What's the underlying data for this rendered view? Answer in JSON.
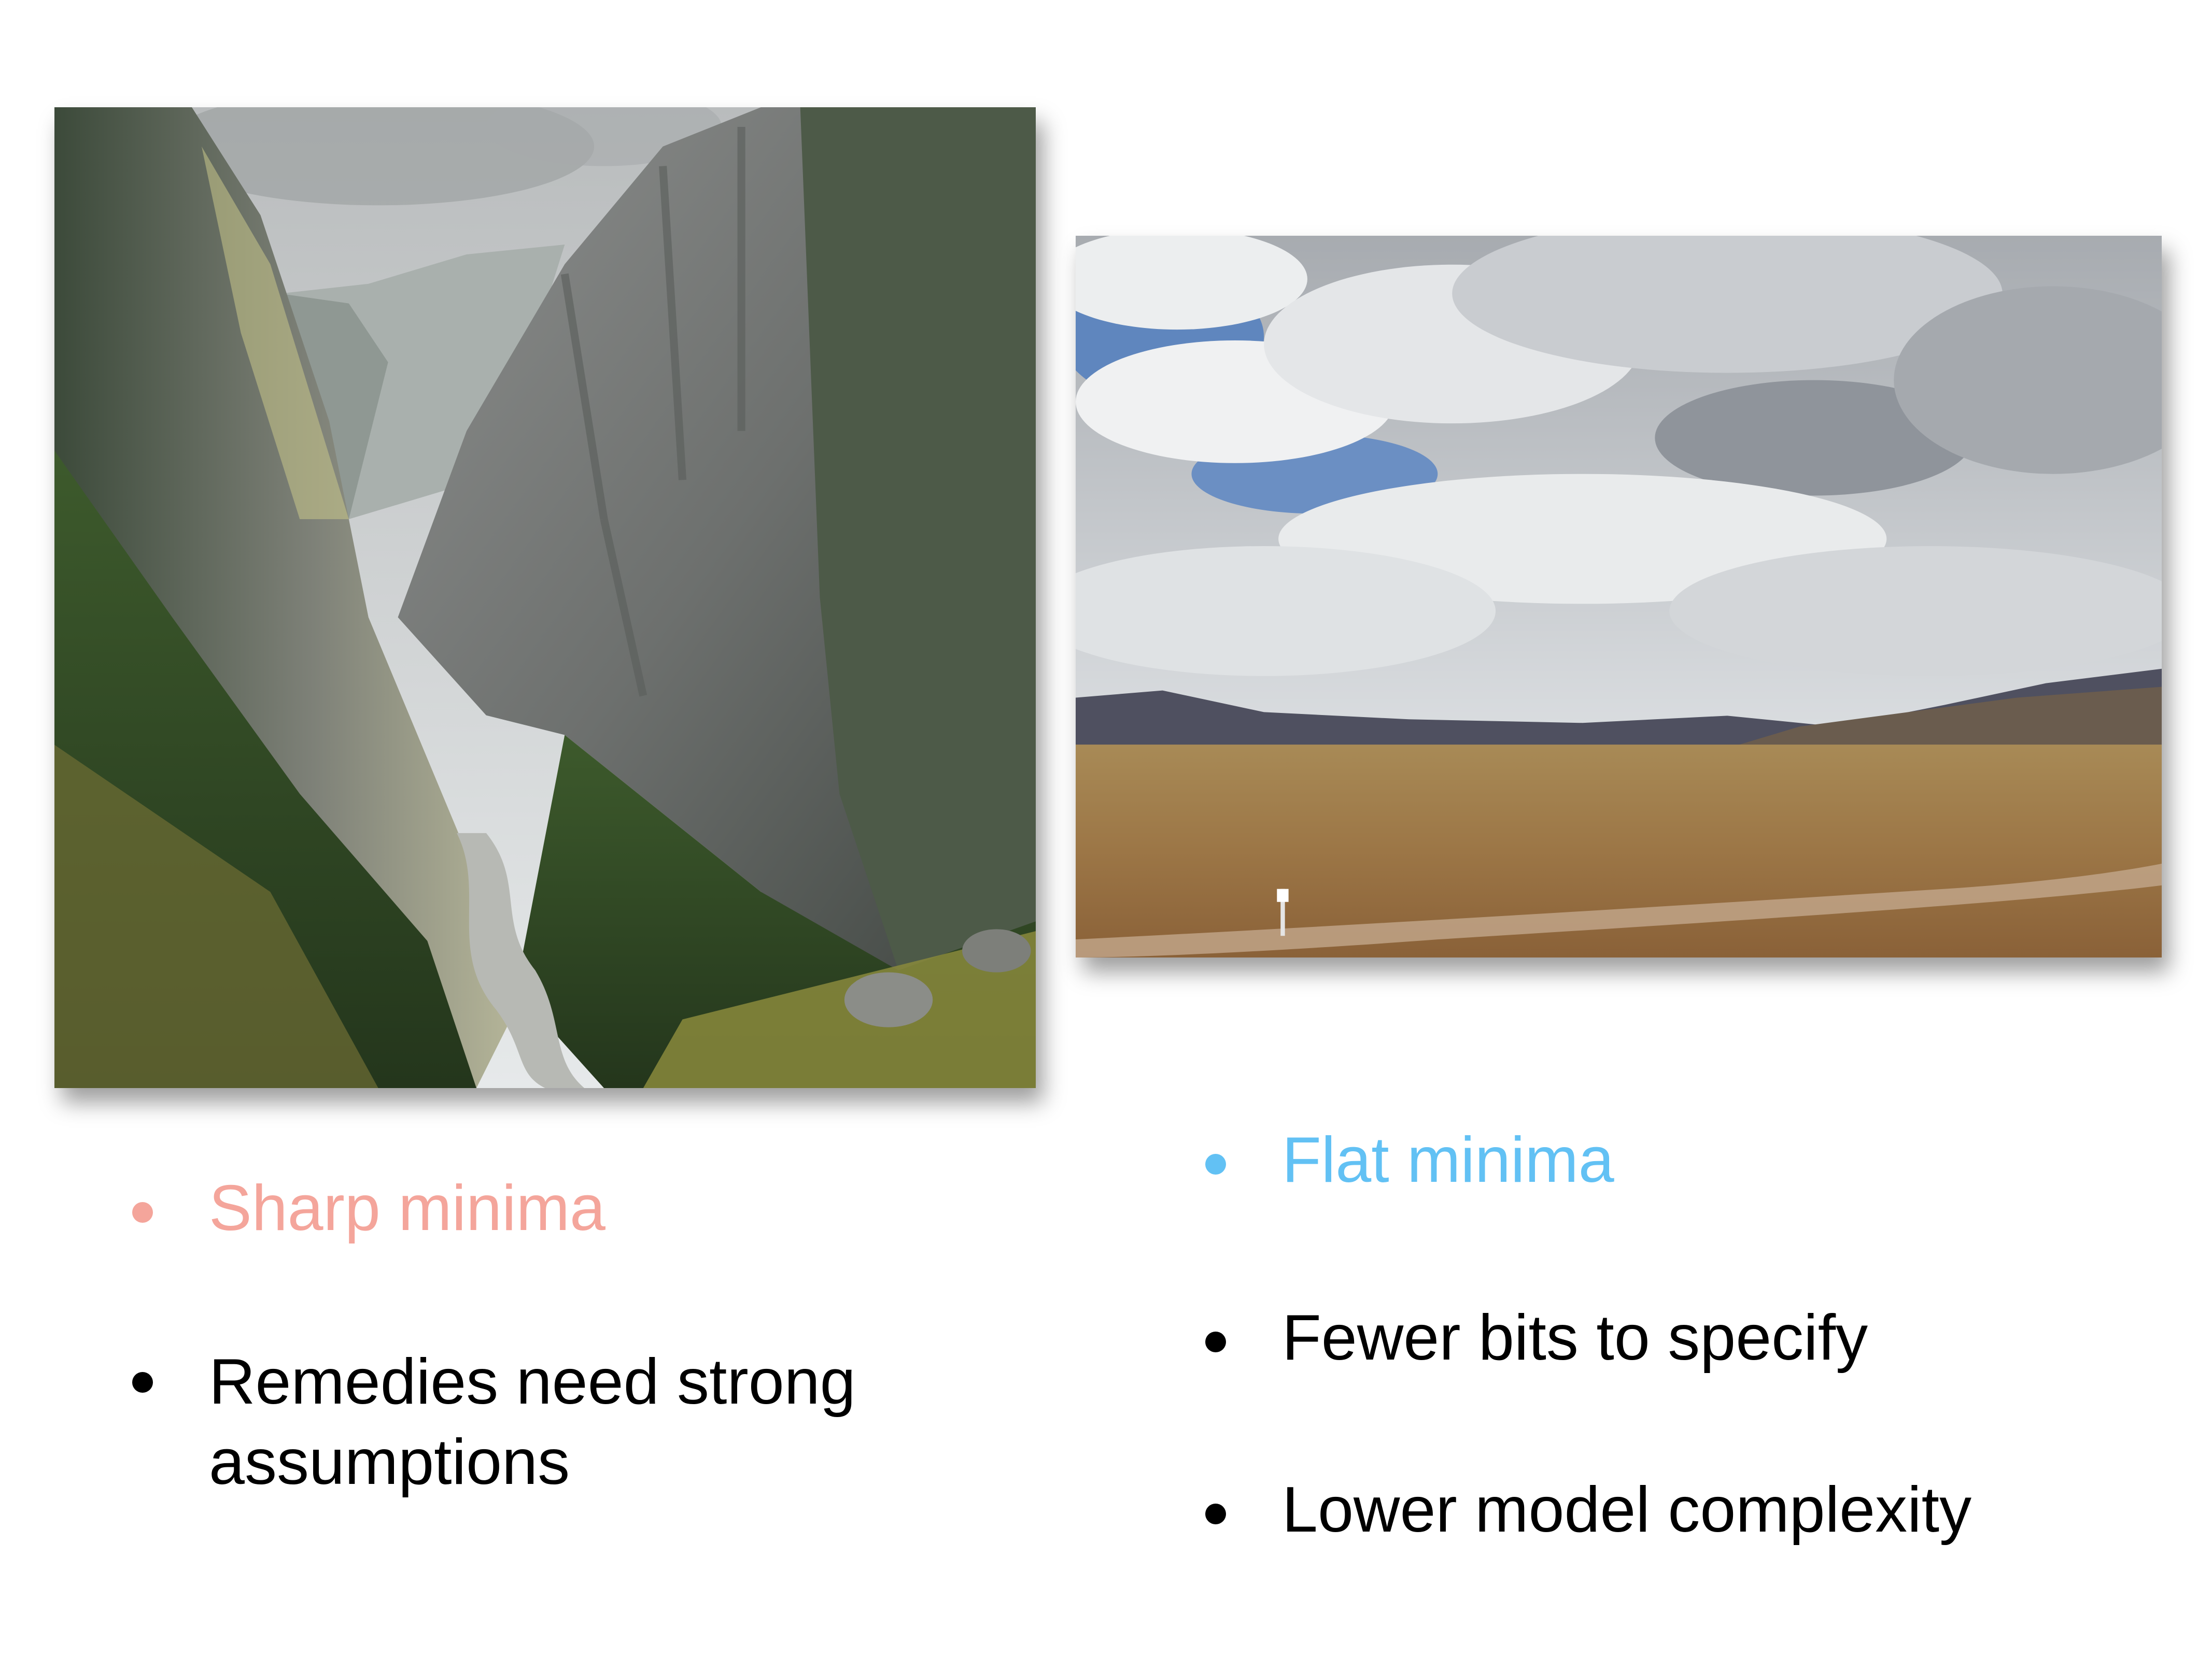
{
  "images": {
    "left": {
      "subject": "steep mountain valley"
    },
    "right": {
      "subject": "flat open plain under cloudy sky"
    }
  },
  "left_column": {
    "heading": "Sharp minima",
    "point": "Remedies need strong assumptions"
  },
  "right_column": {
    "heading": "Flat minima",
    "points": [
      "Fewer bits to specify",
      "Lower model complexity"
    ]
  },
  "colors": {
    "sharp_accent": "#f4a59b",
    "flat_accent": "#62c1f4",
    "body_text": "#000000"
  }
}
